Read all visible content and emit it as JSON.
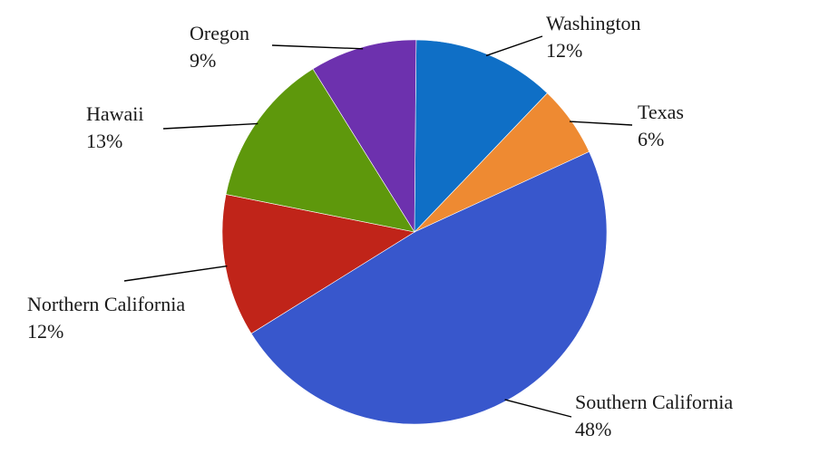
{
  "chart_data": {
    "type": "pie",
    "title": "",
    "slices": [
      {
        "name": "Washington",
        "label": "12%",
        "value": 12,
        "color": "#0f6fc6"
      },
      {
        "name": "Texas",
        "label": "6%",
        "value": 6,
        "color": "#ee8a32"
      },
      {
        "name": "Southern California",
        "label": "48%",
        "value": 48,
        "color": "#3857cc"
      },
      {
        "name": "Northern California",
        "label": "12%",
        "value": 12,
        "color": "#c02419"
      },
      {
        "name": "Hawaii",
        "label": "13%",
        "value": 13,
        "color": "#5e980c"
      },
      {
        "name": "Oregon",
        "label": "9%",
        "value": 9,
        "color": "#6d31ae"
      }
    ],
    "legend": "none"
  }
}
